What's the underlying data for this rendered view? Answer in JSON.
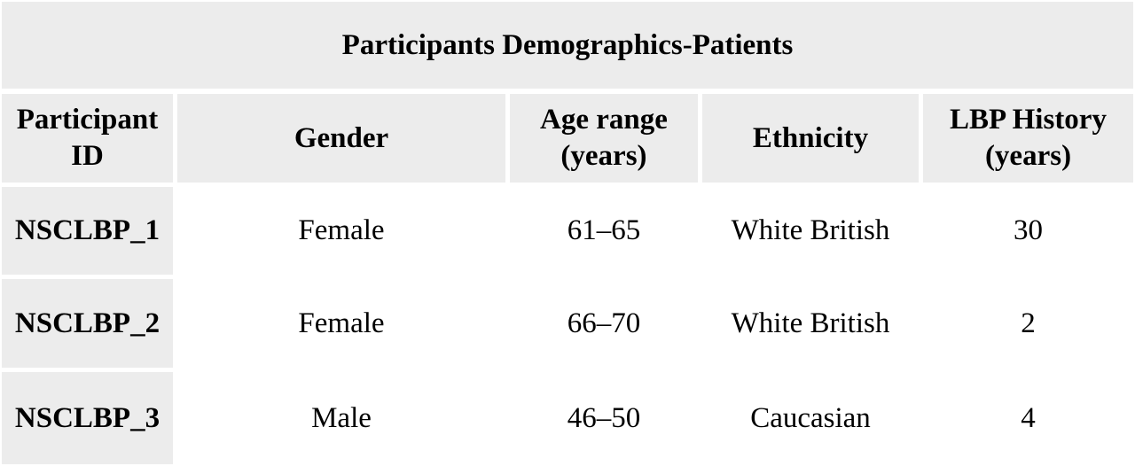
{
  "table": {
    "title": "Participants Demographics-Patients",
    "headers": [
      [
        "Participant",
        "ID"
      ],
      [
        "Gender"
      ],
      [
        "Age range",
        "(years)"
      ],
      [
        "Ethnicity"
      ],
      [
        "LBP History",
        "(years)"
      ]
    ],
    "rows": [
      {
        "id": "NSCLBP_1",
        "gender": "Female",
        "age": "61–65",
        "ethnicity": "White British",
        "history": "30"
      },
      {
        "id": "NSCLBP_2",
        "gender": "Female",
        "age": "66–70",
        "ethnicity": "White British",
        "history": "2"
      },
      {
        "id": "NSCLBP_3",
        "gender": "Male",
        "age": "46–50",
        "ethnicity": "Caucasian",
        "history": "4"
      }
    ]
  }
}
